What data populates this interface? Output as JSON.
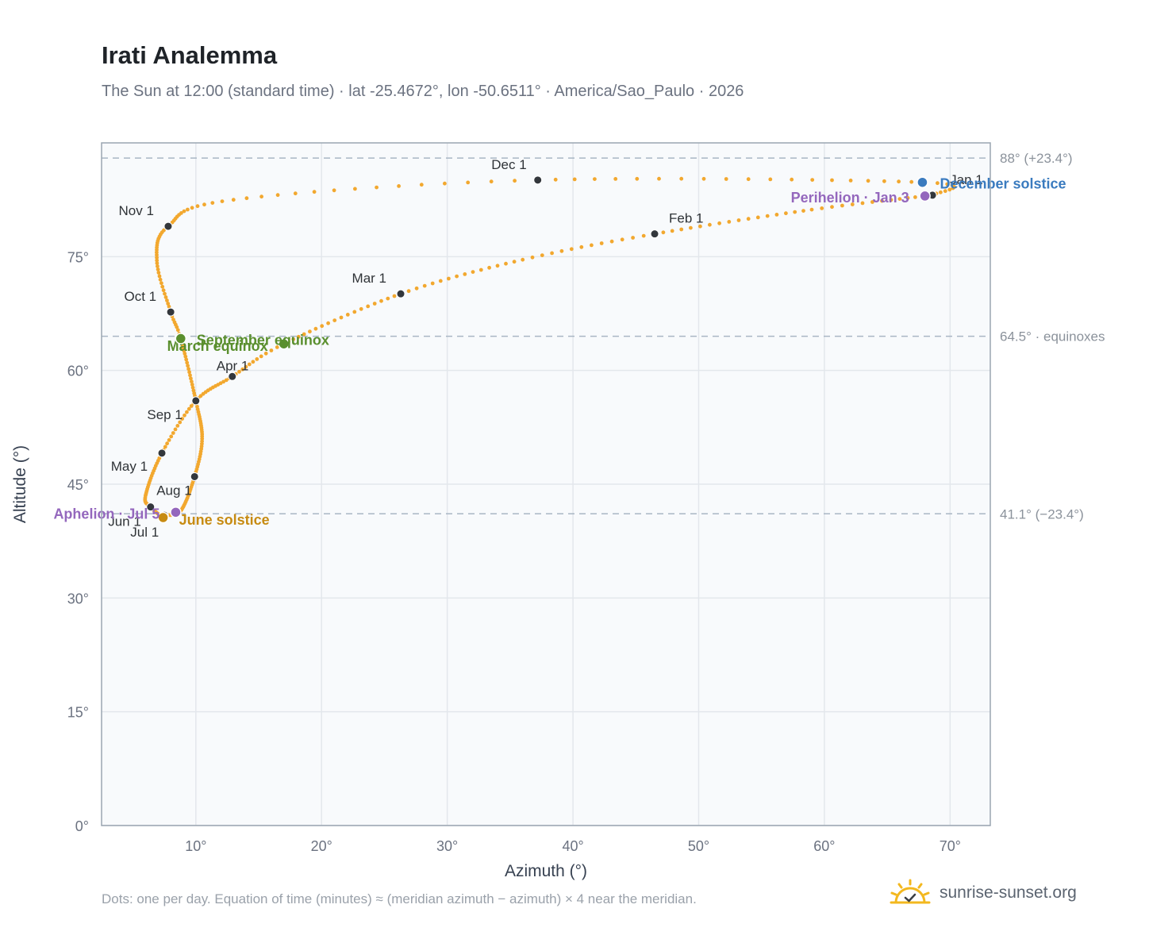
{
  "title": "Irati Analemma",
  "subtitle": "The Sun at 12:00 (standard time) · lat -25.4672°, lon -50.6511° · America/Sao_Paulo · 2026",
  "footnote": "Dots: one per day. Equation of time (minutes) ≈ (meridian azimuth − azimuth) × 4 near the meridian.",
  "brand": {
    "name": "sunrise-sunset.org",
    "icon": "sun-logo-icon"
  },
  "colors": {
    "path": "#f2a82f",
    "month_dot": "#33373c",
    "equinox": "#5a8f2e",
    "june_solstice": "#c78b12",
    "december_solstice": "#3a7bbf",
    "perihelion": "#9467bd",
    "plot_bg": "#f8fafc",
    "grid": "#e3e7ec",
    "ref_line": "#a9b6c4",
    "frame": "#9aa5b1"
  },
  "chart_data": {
    "type": "scatter",
    "xlabel": "Azimuth (°)",
    "ylabel": "Altitude (°)",
    "xlim": [
      2.5,
      73.2
    ],
    "ylim": [
      0,
      90
    ],
    "x_ticks": [
      10,
      20,
      30,
      40,
      50,
      60,
      70
    ],
    "y_ticks": [
      0,
      15,
      30,
      45,
      60,
      75
    ],
    "x_tick_labels": [
      "10°",
      "20°",
      "30°",
      "40°",
      "50°",
      "60°",
      "70°"
    ],
    "y_tick_labels": [
      "0°",
      "15°",
      "30°",
      "45°",
      "60°",
      "75°"
    ],
    "grid": true,
    "reference_lines": [
      {
        "altitude": 88.0,
        "label": "88° (+23.4°)"
      },
      {
        "altitude": 64.5,
        "label": "64.5° · equinoxes"
      },
      {
        "altitude": 41.1,
        "label": "41.1° (−23.4°)"
      }
    ],
    "path_anchors": [
      {
        "day": 1,
        "az": 68.6,
        "alt": 83.1
      },
      {
        "day": 15,
        "az": 59.0,
        "alt": 81.2
      },
      {
        "day": 32,
        "az": 46.5,
        "alt": 78.0
      },
      {
        "day": 45,
        "az": 36.0,
        "alt": 74.6
      },
      {
        "day": 60,
        "az": 26.3,
        "alt": 70.1
      },
      {
        "day": 79,
        "az": 17.0,
        "alt": 63.5
      },
      {
        "day": 91,
        "az": 12.9,
        "alt": 59.2
      },
      {
        "day": 105,
        "az": 10.0,
        "alt": 56.0
      },
      {
        "day": 121,
        "az": 7.3,
        "alt": 49.1
      },
      {
        "day": 140,
        "az": 6.0,
        "alt": 43.5
      },
      {
        "day": 152,
        "az": 6.4,
        "alt": 42.0
      },
      {
        "day": 172,
        "az": 7.4,
        "alt": 40.6
      },
      {
        "day": 182,
        "az": 7.5,
        "alt": 40.9
      },
      {
        "day": 195,
        "az": 8.8,
        "alt": 41.5
      },
      {
        "day": 213,
        "az": 9.9,
        "alt": 46.0
      },
      {
        "day": 228,
        "az": 10.5,
        "alt": 51.0
      },
      {
        "day": 244,
        "az": 10.0,
        "alt": 56.0
      },
      {
        "day": 266,
        "az": 8.8,
        "alt": 64.2
      },
      {
        "day": 274,
        "az": 8.0,
        "alt": 67.7
      },
      {
        "day": 290,
        "az": 6.9,
        "alt": 74.5
      },
      {
        "day": 305,
        "az": 7.8,
        "alt": 79.0
      },
      {
        "day": 320,
        "az": 13.0,
        "alt": 82.5
      },
      {
        "day": 335,
        "az": 37.2,
        "alt": 85.1
      },
      {
        "day": 355,
        "az": 67.8,
        "alt": 84.8
      },
      {
        "day": 366,
        "az": 68.6,
        "alt": 83.1
      }
    ],
    "month_markers": [
      {
        "label": "Jan 1",
        "az": 68.6,
        "alt": 83.1
      },
      {
        "label": "Feb 1",
        "az": 46.5,
        "alt": 78.0
      },
      {
        "label": "Mar 1",
        "az": 26.3,
        "alt": 70.1
      },
      {
        "label": "Apr 1",
        "az": 12.9,
        "alt": 59.2
      },
      {
        "label": "May 1",
        "az": 7.3,
        "alt": 49.1
      },
      {
        "label": "Jun 1",
        "az": 6.4,
        "alt": 42.0
      },
      {
        "label": "Jul 1",
        "az": 7.5,
        "alt": 40.9
      },
      {
        "label": "Aug 1",
        "az": 9.9,
        "alt": 46.0
      },
      {
        "label": "Sep 1",
        "az": 10.0,
        "alt": 56.0
      },
      {
        "label": "Oct 1",
        "az": 8.0,
        "alt": 67.7
      },
      {
        "label": "Nov 1",
        "az": 7.8,
        "alt": 79.0
      },
      {
        "label": "Dec 1",
        "az": 37.2,
        "alt": 85.1
      }
    ],
    "events": [
      {
        "label": "March equinox",
        "az": 17.0,
        "alt": 63.5,
        "kind": "equinox"
      },
      {
        "label": "September equinox",
        "az": 8.8,
        "alt": 64.2,
        "kind": "equinox"
      },
      {
        "label": "June solstice",
        "az": 7.4,
        "alt": 40.6,
        "kind": "june_solstice"
      },
      {
        "label": "December solstice",
        "az": 67.8,
        "alt": 84.8,
        "kind": "december_solstice"
      },
      {
        "label": "Perihelion · Jan 3",
        "az": 68.0,
        "alt": 83.0,
        "kind": "perihelion"
      },
      {
        "label": "Aphelion · Jul 5",
        "az": 8.4,
        "alt": 41.3,
        "kind": "perihelion"
      }
    ]
  }
}
